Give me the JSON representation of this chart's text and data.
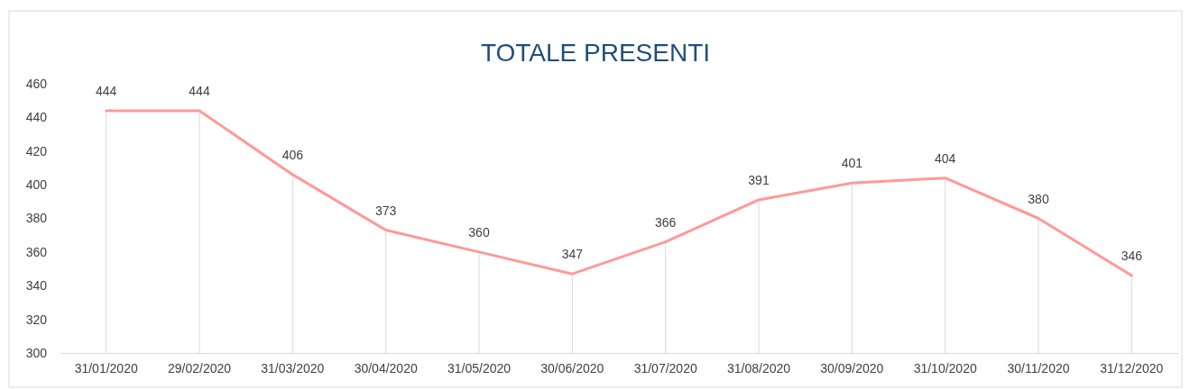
{
  "chart_data": {
    "type": "line",
    "title": "TOTALE PRESENTI",
    "categories": [
      "31/01/2020",
      "29/02/2020",
      "31/03/2020",
      "30/04/2020",
      "31/05/2020",
      "30/06/2020",
      "31/07/2020",
      "31/08/2020",
      "30/09/2020",
      "31/10/2020",
      "30/11/2020",
      "31/12/2020"
    ],
    "values": [
      444,
      444,
      406,
      373,
      360,
      347,
      366,
      391,
      401,
      404,
      380,
      346
    ],
    "color": "#ff9999",
    "ylim": [
      300,
      460
    ],
    "yticks": [
      300,
      320,
      340,
      360,
      380,
      400,
      420,
      440,
      460
    ],
    "data_labels": true,
    "grid": "x",
    "legend": false,
    "marker": "none",
    "line_style": "solid"
  }
}
